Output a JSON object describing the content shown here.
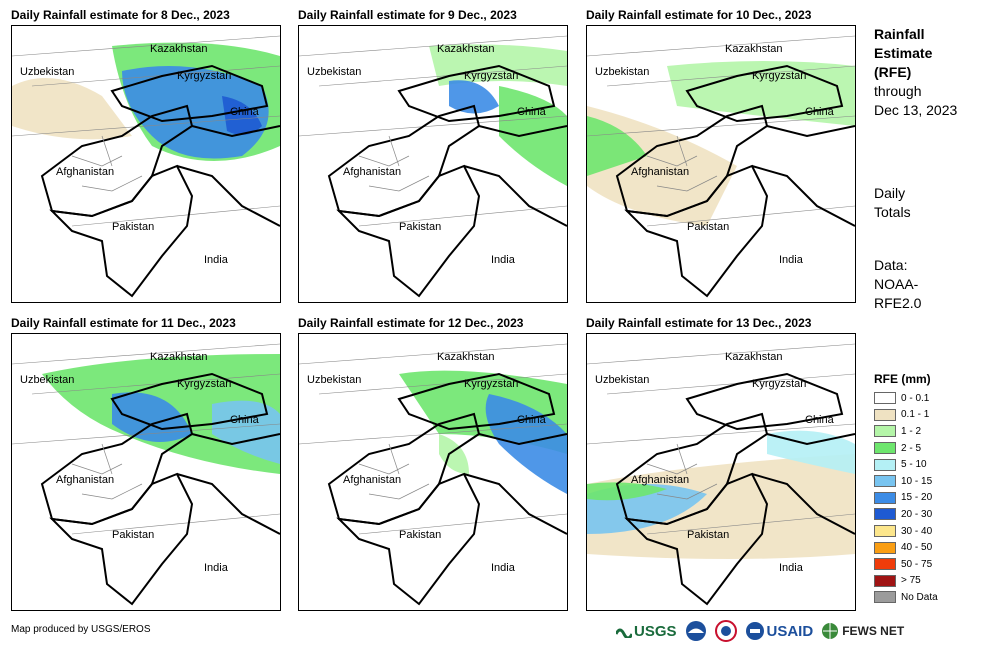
{
  "panels": [
    {
      "title": "Daily Rainfall estimate for 8 Dec., 2023"
    },
    {
      "title": "Daily Rainfall estimate for 9 Dec., 2023"
    },
    {
      "title": "Daily Rainfall estimate for 10 Dec., 2023"
    },
    {
      "title": "Daily Rainfall estimate for 11 Dec., 2023"
    },
    {
      "title": "Daily Rainfall estimate for 12 Dec., 2023"
    },
    {
      "title": "Daily Rainfall estimate for 13 Dec., 2023"
    }
  ],
  "map_labels": {
    "kazakhstan": "Kazakhstan",
    "uzbekistan": "Uzbekistan",
    "kyrgyzstan": "Kyrgyzstan",
    "china": "China",
    "afghanistan": "Afghanistan",
    "pakistan": "Pakistan",
    "india": "India"
  },
  "side": {
    "heading_line1": "Rainfall",
    "heading_line2": "Estimate",
    "heading_line3": "(RFE)",
    "through": "through",
    "date": "Dec 13, 2023",
    "daily1": "Daily",
    "daily2": "Totals",
    "data1": "Data:",
    "data2": "NOAA-",
    "data3": "RFE2.0"
  },
  "legend": {
    "title": "RFE (mm)",
    "items": [
      {
        "label": "0 - 0.1",
        "color": "#ffffff"
      },
      {
        "label": "0.1 - 1",
        "color": "#efe2c2"
      },
      {
        "label": "1 - 2",
        "color": "#b4f5a8"
      },
      {
        "label": "2 - 5",
        "color": "#6ee66e"
      },
      {
        "label": "5 - 10",
        "color": "#b4f0f5"
      },
      {
        "label": "10 - 15",
        "color": "#78c4f0"
      },
      {
        "label": "15 - 20",
        "color": "#3c8ce6"
      },
      {
        "label": "20 - 30",
        "color": "#1e5ad2"
      },
      {
        "label": "30 - 40",
        "color": "#fce68c"
      },
      {
        "label": "40 - 50",
        "color": "#fa9e14"
      },
      {
        "label": "50 - 75",
        "color": "#f03c0a"
      },
      {
        "label": "> 75",
        "color": "#a01414"
      },
      {
        "label": "No Data",
        "color": "#9b9b9b"
      }
    ]
  },
  "footer": "Map produced by USGS/EROS",
  "logos": {
    "usgs": "USGS",
    "usaid": "USAID",
    "fewsnet": "FEWS NET"
  }
}
